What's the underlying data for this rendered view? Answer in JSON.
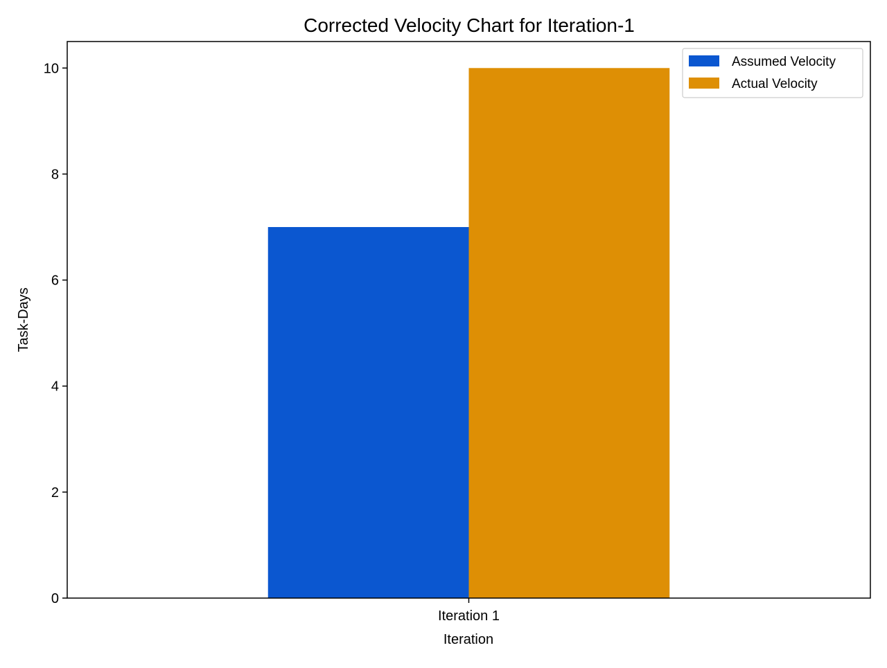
{
  "chart_data": {
    "type": "bar",
    "title": "Corrected Velocity Chart for Iteration-1",
    "xlabel": "Iteration",
    "ylabel": "Task-Days",
    "categories": [
      "Iteration 1"
    ],
    "series": [
      {
        "name": "Assumed Velocity",
        "values": [
          7
        ],
        "color": "#0b57d0"
      },
      {
        "name": "Actual Velocity",
        "values": [
          10
        ],
        "color": "#de8f05"
      }
    ],
    "ylim": [
      0,
      10.5
    ],
    "yticks": [
      "0",
      "2",
      "4",
      "6",
      "8",
      "10"
    ],
    "grid": false,
    "legend_position": "top-right"
  }
}
